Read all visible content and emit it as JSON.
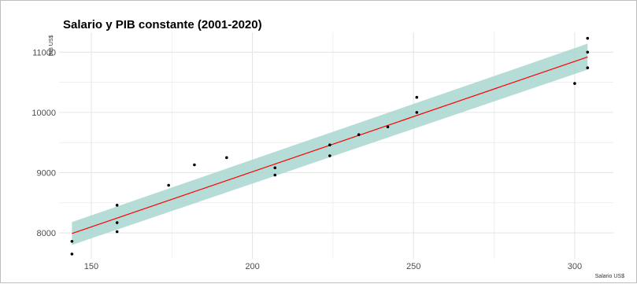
{
  "chart_data": {
    "type": "scatter",
    "title": "Salario y PIB constante (2001-2020)",
    "xlabel": "Salario US$",
    "ylabel": "PIB US$",
    "xlim": [
      140,
      312
    ],
    "ylim": [
      7570,
      11330
    ],
    "x_ticks": [
      150,
      200,
      250,
      300
    ],
    "y_ticks": [
      8000,
      9000,
      10000,
      11000
    ],
    "grid": true,
    "colors": {
      "points": "#000000",
      "fit_line": "#ff0000",
      "confidence_band": "#a9d6d0",
      "grid": "#e6e6e6"
    },
    "series": [
      {
        "type": "points",
        "x": [
          144,
          144,
          158,
          158,
          158,
          174,
          182,
          192,
          207,
          207,
          224,
          224,
          233,
          242,
          251,
          251,
          300,
          304,
          304,
          304
        ],
        "y": [
          7860,
          7650,
          8460,
          8170,
          8020,
          8790,
          9130,
          9250,
          9080,
          8960,
          9460,
          9280,
          9630,
          9760,
          10250,
          10000,
          10480,
          11230,
          11000,
          10740
        ]
      },
      {
        "type": "fit",
        "method": "linear",
        "x": [
          144,
          304
        ],
        "y": [
          7990,
          10920
        ],
        "ci_lower": [
          7800,
          10710
        ],
        "ci_upper": [
          8180,
          11140
        ]
      }
    ]
  }
}
